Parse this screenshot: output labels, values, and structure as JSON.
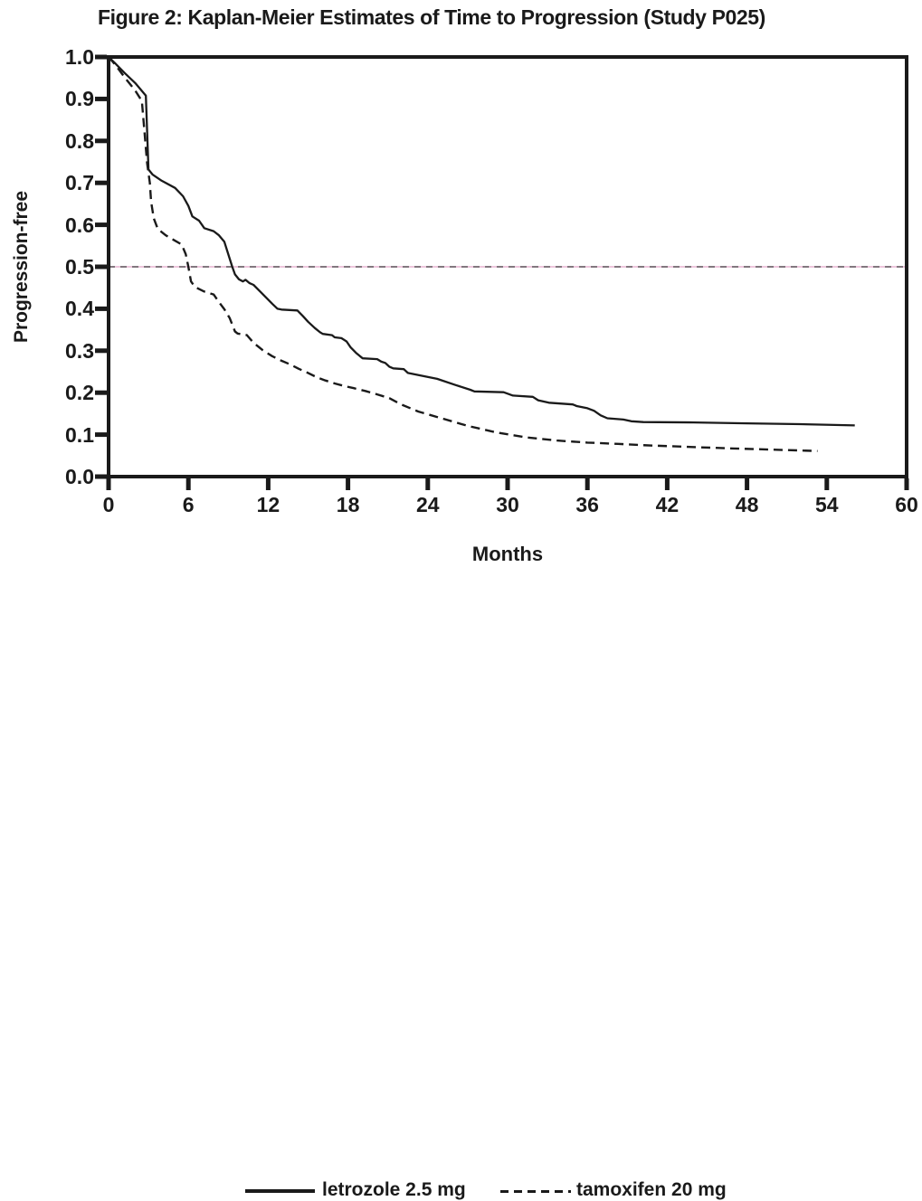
{
  "chart_data": {
    "type": "line",
    "subtype": "kaplan-meier-step-curves",
    "title": "Figure 2: Kaplan-Meier Estimates of Time to Progression (Study P025)",
    "xlabel": "Months",
    "ylabel": "Progression-free",
    "xlim": [
      0,
      60
    ],
    "ylim": [
      0.0,
      1.0
    ],
    "xticks": [
      0,
      6,
      12,
      18,
      24,
      30,
      36,
      42,
      48,
      54,
      60
    ],
    "xtick_labels": [
      "0",
      "6",
      "12",
      "18",
      "24",
      "30",
      "36",
      "42",
      "48",
      "54",
      "60"
    ],
    "yticks": [
      1.0,
      0.9,
      0.8,
      0.7,
      0.6,
      0.5,
      0.4,
      0.3,
      0.2,
      0.1,
      0.0
    ],
    "ytick_labels": [
      "1.0",
      "0.9",
      "0.8",
      "0.7",
      "0.6",
      "0.5",
      "0.4",
      "0.3",
      "0.2",
      "0.1",
      "0.0"
    ],
    "grid": false,
    "legend_position": "bottom",
    "reference_line": {
      "y": 0.5,
      "style": "fine-dashed"
    },
    "colors": {
      "curve": "#1a1a1a",
      "axis": "#1a1a1a",
      "reference_dash": "#3f3f3f",
      "reference_gap_pink": "#e7b3d0"
    },
    "series": [
      {
        "name": "letrozole 2.5 mg",
        "line_style": "solid",
        "points": [
          [
            0,
            1.0
          ],
          [
            0.5,
            0.985
          ],
          [
            1.2,
            0.962
          ],
          [
            2.0,
            0.938
          ],
          [
            2.8,
            0.908
          ],
          [
            3.0,
            0.732
          ],
          [
            3.3,
            0.72
          ],
          [
            4.0,
            0.705
          ],
          [
            5.0,
            0.688
          ],
          [
            5.6,
            0.668
          ],
          [
            6.0,
            0.645
          ],
          [
            6.3,
            0.62
          ],
          [
            6.8,
            0.61
          ],
          [
            7.2,
            0.592
          ],
          [
            7.9,
            0.585
          ],
          [
            8.3,
            0.575
          ],
          [
            8.7,
            0.56
          ],
          [
            9.0,
            0.53
          ],
          [
            9.3,
            0.5
          ],
          [
            9.5,
            0.482
          ],
          [
            9.8,
            0.47
          ],
          [
            10.1,
            0.465
          ],
          [
            10.3,
            0.469
          ],
          [
            10.6,
            0.461
          ],
          [
            10.9,
            0.457
          ],
          [
            11.4,
            0.441
          ],
          [
            11.9,
            0.425
          ],
          [
            12.3,
            0.412
          ],
          [
            12.7,
            0.4
          ],
          [
            13.0,
            0.398
          ],
          [
            14.2,
            0.396
          ],
          [
            14.6,
            0.383
          ],
          [
            15.0,
            0.369
          ],
          [
            15.5,
            0.354
          ],
          [
            15.9,
            0.344
          ],
          [
            16.1,
            0.34
          ],
          [
            16.8,
            0.337
          ],
          [
            17.0,
            0.332
          ],
          [
            17.5,
            0.33
          ],
          [
            17.9,
            0.322
          ],
          [
            18.2,
            0.308
          ],
          [
            18.6,
            0.295
          ],
          [
            18.9,
            0.287
          ],
          [
            19.1,
            0.282
          ],
          [
            20.2,
            0.28
          ],
          [
            20.5,
            0.274
          ],
          [
            20.8,
            0.271
          ],
          [
            21.1,
            0.262
          ],
          [
            21.4,
            0.258
          ],
          [
            22.2,
            0.256
          ],
          [
            22.5,
            0.247
          ],
          [
            23.6,
            0.24
          ],
          [
            24.7,
            0.233
          ],
          [
            26.1,
            0.218
          ],
          [
            27.2,
            0.207
          ],
          [
            27.5,
            0.203
          ],
          [
            29.7,
            0.201
          ],
          [
            30.4,
            0.193
          ],
          [
            31.9,
            0.19
          ],
          [
            32.3,
            0.182
          ],
          [
            33.1,
            0.176
          ],
          [
            34.9,
            0.172
          ],
          [
            35.2,
            0.168
          ],
          [
            36.0,
            0.163
          ],
          [
            36.5,
            0.157
          ],
          [
            37.0,
            0.146
          ],
          [
            37.5,
            0.139
          ],
          [
            38.7,
            0.136
          ],
          [
            39.3,
            0.132
          ],
          [
            40.2,
            0.13
          ],
          [
            44.0,
            0.129
          ],
          [
            48.0,
            0.127
          ],
          [
            52.0,
            0.125
          ],
          [
            56.1,
            0.122
          ]
        ]
      },
      {
        "name": "tamoxifen 20 mg",
        "line_style": "dashed",
        "points": [
          [
            0,
            1.0
          ],
          [
            0.5,
            0.982
          ],
          [
            1.2,
            0.952
          ],
          [
            2.0,
            0.92
          ],
          [
            2.5,
            0.895
          ],
          [
            2.9,
            0.747
          ],
          [
            3.1,
            0.7
          ],
          [
            3.2,
            0.655
          ],
          [
            3.4,
            0.615
          ],
          [
            3.7,
            0.59
          ],
          [
            4.3,
            0.575
          ],
          [
            4.9,
            0.564
          ],
          [
            5.5,
            0.553
          ],
          [
            5.8,
            0.53
          ],
          [
            6.0,
            0.5
          ],
          [
            6.2,
            0.465
          ],
          [
            6.5,
            0.452
          ],
          [
            7.2,
            0.441
          ],
          [
            7.9,
            0.434
          ],
          [
            8.3,
            0.416
          ],
          [
            8.7,
            0.399
          ],
          [
            9.1,
            0.378
          ],
          [
            9.5,
            0.346
          ],
          [
            9.7,
            0.341
          ],
          [
            10.4,
            0.337
          ],
          [
            10.9,
            0.319
          ],
          [
            11.6,
            0.301
          ],
          [
            12.3,
            0.287
          ],
          [
            13.0,
            0.276
          ],
          [
            13.6,
            0.268
          ],
          [
            14.3,
            0.257
          ],
          [
            15.0,
            0.247
          ],
          [
            15.7,
            0.236
          ],
          [
            16.3,
            0.229
          ],
          [
            17.0,
            0.222
          ],
          [
            17.7,
            0.216
          ],
          [
            18.4,
            0.211
          ],
          [
            19.3,
            0.204
          ],
          [
            20.2,
            0.196
          ],
          [
            21.1,
            0.187
          ],
          [
            22.0,
            0.172
          ],
          [
            23.3,
            0.155
          ],
          [
            24.7,
            0.142
          ],
          [
            27.0,
            0.121
          ],
          [
            29.2,
            0.105
          ],
          [
            31.5,
            0.093
          ],
          [
            33.7,
            0.086
          ],
          [
            36.0,
            0.081
          ],
          [
            38.3,
            0.078
          ],
          [
            40.1,
            0.075
          ],
          [
            43.5,
            0.071
          ],
          [
            47.0,
            0.067
          ],
          [
            50.2,
            0.064
          ],
          [
            53.3,
            0.061
          ]
        ]
      }
    ]
  }
}
